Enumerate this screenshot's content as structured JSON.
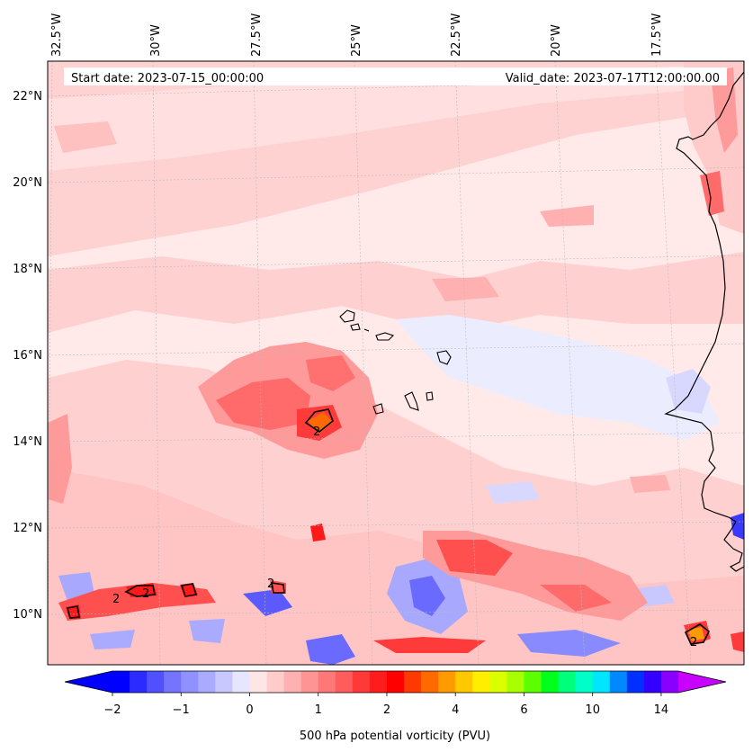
{
  "map": {
    "start_label": "Start date: 2023-07-15_00:00:00",
    "valid_label": "Valid_date: 2023-07-17T12:00:00.00",
    "lon_labels": [
      "32.5°W",
      "30°W",
      "27.5°W",
      "25°W",
      "22.5°W",
      "20°W",
      "17.5°W"
    ],
    "lat_labels": [
      "22°N",
      "20°N",
      "18°N",
      "16°N",
      "14°N",
      "12°N",
      "10°N"
    ],
    "contour_label": "2"
  },
  "colorbar": {
    "tick_labels": [
      "−2",
      "−1",
      "0",
      "1",
      "2",
      "4",
      "6",
      "10",
      "14"
    ],
    "title": "500 hPa potential vorticity (PVU)",
    "colors": [
      "#0000ff",
      "#2b2bff",
      "#5050ff",
      "#7474ff",
      "#9090ff",
      "#aaaaff",
      "#c8c8ff",
      "#e6e6ff",
      "#ffe6e6",
      "#ffcccc",
      "#ffb0b0",
      "#ff9494",
      "#ff7878",
      "#ff5c5c",
      "#ff3838",
      "#ff1c1c",
      "#ff0000",
      "#ff3a00",
      "#ff6a00",
      "#ff9a00",
      "#ffc800",
      "#ffee00",
      "#dcff00",
      "#a8ff00",
      "#5cff00",
      "#00ff1a",
      "#00ff7a",
      "#00ffc8",
      "#00e6ff",
      "#0088ff",
      "#0030ff",
      "#3300ff",
      "#8a00ff"
    ],
    "under_color": "#0000ff",
    "over_color": "#c800ff"
  },
  "colors": {
    "base_field": "#ffe9e9",
    "light_red": "#ffcfcf",
    "med_red": "#ff9a9a",
    "strong_red": "#ff5050",
    "deep_red": "#ff1a1a",
    "light_blue": "#e8e8ff",
    "med_blue": "#a8a8ff",
    "strong_blue": "#3a3aff",
    "peak": "#ff6a00",
    "coast": "#000000"
  }
}
